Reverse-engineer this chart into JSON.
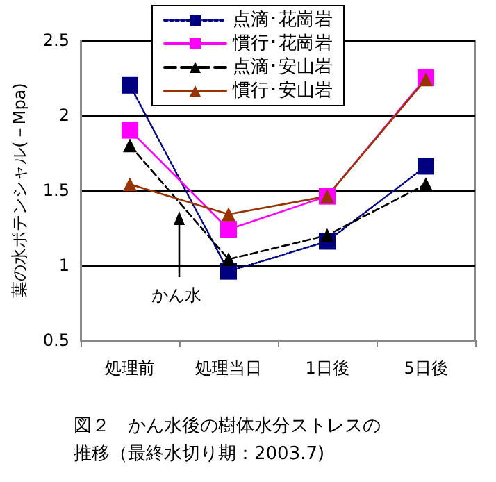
{
  "chart_data": {
    "type": "line",
    "title": "図２　かん水後の樹体水分ストレスの推移（最終水切り期：2003.7)",
    "ylabel": "葉の水ポテンシャル(－Mpa)",
    "annotations": [
      "かん水"
    ],
    "categories": [
      "処理前",
      "処理当日",
      "1日後",
      "5日後"
    ],
    "series": [
      {
        "name": "点滴･花崗岩",
        "color": "#000080",
        "marker": "square",
        "line_style": "dotted",
        "values": [
          2.2,
          0.96,
          1.16,
          1.66
        ]
      },
      {
        "name": "慣行･花崗岩",
        "color": "#ff00ff",
        "marker": "square",
        "line_style": "solid",
        "values": [
          1.9,
          1.24,
          1.46,
          2.25
        ]
      },
      {
        "name": "点滴･安山岩",
        "color": "#000000",
        "marker": "triangle",
        "line_style": "dashed",
        "values": [
          1.8,
          1.04,
          1.2,
          1.54
        ]
      },
      {
        "name": "慣行･安山岩",
        "color": "#993300",
        "marker": "triangle",
        "line_style": "solid",
        "values": [
          1.54,
          1.34,
          1.46,
          2.24
        ]
      }
    ],
    "ylim": [
      0.5,
      2.5
    ],
    "yticks": [
      0.5,
      1,
      1.5,
      2,
      2.5
    ],
    "grid": "y",
    "legend": "top"
  }
}
